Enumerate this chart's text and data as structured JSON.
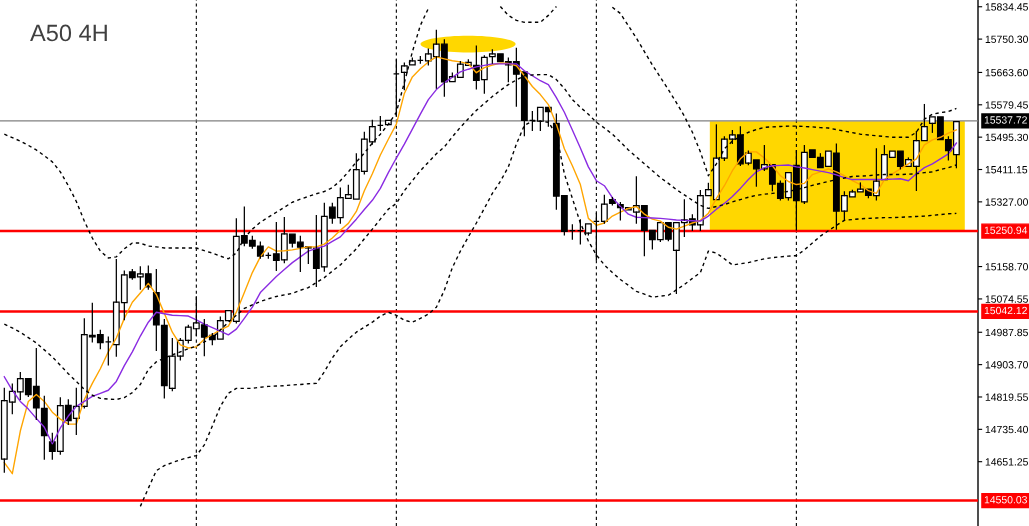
{
  "chart_data": {
    "type": "candlestick",
    "title": "A50 4H",
    "categories": [
      null,
      null,
      null,
      null,
      null,
      null,
      null,
      null,
      null,
      null,
      null,
      null,
      null,
      null,
      null,
      null,
      null,
      null,
      null,
      null,
      null,
      null,
      null,
      null,
      null,
      null,
      null,
      null,
      null,
      null,
      null,
      null,
      null,
      null,
      null,
      null,
      null,
      null,
      null,
      null,
      null,
      null,
      null,
      null,
      null,
      null,
      null,
      null,
      null,
      null,
      null,
      null,
      null,
      null,
      null,
      null,
      null,
      null,
      null,
      null,
      null,
      null,
      null,
      null,
      null,
      null,
      null,
      null,
      null,
      null,
      null,
      null,
      null,
      null,
      null,
      null,
      null,
      null,
      null,
      null,
      null,
      null,
      null,
      null,
      null,
      null,
      null,
      null,
      null,
      null,
      null,
      null,
      null,
      null,
      null,
      null,
      null,
      null,
      null,
      null,
      null,
      null,
      null,
      null,
      null,
      null,
      null,
      null,
      null,
      null,
      null,
      null,
      null,
      null,
      null,
      null,
      null,
      null,
      null,
      null
    ],
    "ohlc": [
      [
        14658,
        14842,
        14624,
        14810
      ],
      [
        14806,
        14853,
        14776,
        14834
      ],
      [
        14833,
        14883,
        14813,
        14867
      ],
      [
        14867,
        14870,
        14821,
        14826
      ],
      [
        14847,
        14945,
        14761,
        14791
      ],
      [
        14790,
        14821,
        14658,
        14719
      ],
      [
        14703,
        14725,
        14658,
        14678
      ],
      [
        14678,
        14817,
        14671,
        14797
      ],
      [
        14798,
        14812,
        14748,
        14758
      ],
      [
        14764,
        14842,
        14722,
        14795
      ],
      [
        14795,
        15023,
        14791,
        14982
      ],
      [
        14980,
        15063,
        14963,
        14976
      ],
      [
        14982,
        14993,
        14945,
        14961
      ],
      [
        14963,
        14975,
        14903,
        14963
      ],
      [
        14956,
        15177,
        14926,
        15066
      ],
      [
        15065,
        15147,
        15021,
        15137
      ],
      [
        15145,
        15151,
        15126,
        15130
      ],
      [
        15132,
        15158,
        15100,
        15140
      ],
      [
        15140,
        15160,
        15100,
        15106
      ],
      [
        15091,
        15151,
        14941,
        15007
      ],
      [
        15006,
        15021,
        14817,
        14849
      ],
      [
        14842,
        14971,
        14836,
        14926
      ],
      [
        14926,
        14971,
        14916,
        14967
      ],
      [
        14967,
        15006,
        14960,
        15001
      ],
      [
        14997,
        15080,
        14980,
        15012
      ],
      [
        15007,
        15021,
        14927,
        14975
      ],
      [
        14980,
        14984,
        14956,
        14969
      ],
      [
        14970,
        15027,
        14967,
        15018
      ],
      [
        15018,
        15047,
        15016,
        15044
      ],
      [
        15016,
        15283,
        15012,
        15237
      ],
      [
        15239,
        15313,
        15213,
        15220
      ],
      [
        15227,
        15237,
        15207,
        15212
      ],
      [
        15212,
        15222,
        15181,
        15186
      ],
      [
        15188,
        15194,
        15181,
        15188
      ],
      [
        15192,
        15273,
        15149,
        15175
      ],
      [
        15176,
        15286,
        15169,
        15244
      ],
      [
        15243,
        15246,
        15210,
        15220
      ],
      [
        15222,
        15237,
        15146,
        15209
      ],
      [
        15210,
        15213,
        15167,
        15207
      ],
      [
        15207,
        15291,
        15107,
        15154
      ],
      [
        15158,
        15323,
        15147,
        15289
      ],
      [
        15313,
        15323,
        15272,
        15285
      ],
      [
        15286,
        15363,
        15272,
        15338
      ],
      [
        15336,
        15370,
        15336,
        15346
      ],
      [
        15334,
        15452,
        15334,
        15411
      ],
      [
        15406,
        15508,
        15400,
        15490
      ],
      [
        15483,
        15539,
        15477,
        15523
      ],
      [
        15526,
        15549,
        15513,
        15526
      ],
      [
        15528,
        15539,
        15528,
        15539
      ],
      [
        15660,
        15696,
        15550,
        15660
      ],
      [
        15664,
        15688,
        15619,
        15681
      ],
      [
        15683,
        15701,
        15681,
        15694
      ],
      [
        15695,
        15705,
        15688,
        15695
      ],
      [
        15694,
        15724,
        15683,
        15712
      ],
      [
        15705,
        15773,
        15623,
        15737
      ],
      [
        15737,
        15748,
        15602,
        15639
      ],
      [
        15640,
        15662,
        15640,
        15653
      ],
      [
        15651,
        15692,
        15649,
        15685
      ],
      [
        15682,
        15696,
        15679,
        15690
      ],
      [
        15682,
        15732,
        15621,
        15643
      ],
      [
        15645,
        15707,
        15610,
        15703
      ],
      [
        15705,
        15722,
        15688,
        15712
      ],
      [
        15712,
        15713,
        15690,
        15692
      ],
      [
        15692,
        15701,
        15640,
        15683
      ],
      [
        15692,
        15726,
        15576,
        15659
      ],
      [
        15665,
        15666,
        15499,
        15539
      ],
      [
        15539,
        15562,
        15513,
        15539
      ],
      [
        15537,
        15573,
        15513,
        15573
      ],
      [
        15573,
        15573,
        15524,
        15562
      ],
      [
        15531,
        15555,
        15308,
        15342
      ],
      [
        15343,
        15344,
        15241,
        15250
      ],
      [
        15252,
        15267,
        15230,
        15252
      ],
      [
        15252,
        15280,
        15218,
        15252
      ],
      [
        15246,
        15270,
        15241,
        15270
      ],
      [
        15276,
        15297,
        15176,
        15276
      ],
      [
        15276,
        15344,
        15272,
        15321
      ],
      [
        15333,
        15338,
        15319,
        15323
      ],
      [
        15320,
        15325,
        15280,
        15312
      ],
      [
        15306,
        15315,
        15304,
        15312
      ],
      [
        15300,
        15392,
        15272,
        15317
      ],
      [
        15317,
        15317,
        15187,
        15253
      ],
      [
        15253,
        15253,
        15205,
        15229
      ],
      [
        15229,
        15273,
        15224,
        15273
      ],
      [
        15273,
        15276,
        15226,
        15230
      ],
      [
        15201,
        15276,
        15089,
        15273
      ],
      [
        15273,
        15332,
        15237,
        15280
      ],
      [
        15283,
        15293,
        15253,
        15267
      ],
      [
        15267,
        15356,
        15253,
        15343
      ],
      [
        15343,
        15375,
        15343,
        15359
      ],
      [
        15333,
        15527,
        15333,
        15441
      ],
      [
        15441,
        15496,
        15435,
        15490
      ],
      [
        15490,
        15512,
        15479,
        15501
      ],
      [
        15501,
        15522,
        15422,
        15426
      ],
      [
        15428,
        15459,
        15424,
        15454
      ],
      [
        15436,
        15436,
        15368,
        15413
      ],
      [
        15413,
        15473,
        15409,
        15424
      ],
      [
        15424,
        15424,
        15356,
        15373
      ],
      [
        15375,
        15381,
        15332,
        15336
      ],
      [
        15338,
        15405,
        15332,
        15403
      ],
      [
        15422,
        15460,
        15254,
        15330
      ],
      [
        15327,
        15473,
        15323,
        15456
      ],
      [
        15462,
        15462,
        15441,
        15443
      ],
      [
        15443,
        15452,
        15413,
        15416
      ],
      [
        15419,
        15459,
        15419,
        15459
      ],
      [
        15454,
        15477,
        15256,
        15303
      ],
      [
        15303,
        15353,
        15280,
        15343
      ],
      [
        15340,
        15357,
        15340,
        15353
      ],
      [
        15353,
        15376,
        15353,
        15360
      ],
      [
        15360,
        15362,
        15338,
        15344
      ],
      [
        15343,
        15465,
        15332,
        15381
      ],
      [
        15385,
        15473,
        15385,
        15450
      ],
      [
        15443,
        15462,
        15443,
        15459
      ],
      [
        15459,
        15459,
        15413,
        15419
      ],
      [
        15419,
        15441,
        15419,
        15437
      ],
      [
        15419,
        15510,
        15357,
        15486
      ],
      [
        15486,
        15580,
        15486,
        15523
      ],
      [
        15531,
        15548,
        15508,
        15548
      ],
      [
        15548,
        15550,
        15486,
        15489
      ],
      [
        15489,
        15496,
        15436,
        15460
      ],
      [
        15450,
        15539,
        15416,
        15536
      ]
    ],
    "series": [
      {
        "type": "line",
        "color": "#ffa500",
        "line_style": "solid",
        "values": [
          14649,
          14620,
          14731,
          14808,
          14826,
          14808,
          14780,
          14762,
          14749,
          14749,
          14813,
          14855,
          14893,
          14937,
          14973,
          15024,
          15066,
          15090,
          15115,
          15086,
          15037,
          14988,
          14955,
          14947,
          14950,
          14970,
          14982,
          14994,
          15004,
          15040,
          15091,
          15143,
          15184,
          15210,
          15199,
          15200,
          15202,
          15206,
          15210,
          15210,
          15217,
          15233,
          15253,
          15271,
          15302,
          15356,
          15400,
          15449,
          15490,
          15529,
          15609,
          15652,
          15673,
          15691,
          15704,
          15699,
          15694,
          15691,
          15686,
          15663,
          15676,
          15683,
          15688,
          15687,
          15681,
          15655,
          15627,
          15606,
          15580,
          15529,
          15465,
          15421,
          15372,
          15284,
          15266,
          15272,
          15290,
          15300,
          15310,
          15315,
          15295,
          15282,
          15277,
          15261,
          15256,
          15264,
          15272,
          15279,
          15297,
          15336,
          15369,
          15408,
          15439,
          15457,
          15457,
          15441,
          15421,
          15395,
          15380,
          15372,
          15375,
          15398,
          15405,
          15413,
          15405,
          15395,
          15382,
          15372,
          15356,
          15349,
          15385,
          15400,
          15413,
          15426,
          15439,
          15475,
          15488,
          15495,
          15506,
          15514
        ]
      },
      {
        "type": "line",
        "color": "#8a2be2",
        "line_style": "solid",
        "values": [
          14872,
          14837,
          14808,
          14788,
          14764,
          14741,
          14698,
          14739,
          14770,
          14795,
          14808,
          14821,
          14829,
          14837,
          14860,
          14901,
          14937,
          14978,
          15014,
          15040,
          15036,
          15032,
          15031,
          15030,
          15020,
          15009,
          15000,
          14991,
          14981,
          14996,
          15024,
          15053,
          15091,
          15112,
          15133,
          15151,
          15169,
          15184,
          15199,
          15206,
          15212,
          15224,
          15236,
          15259,
          15282,
          15307,
          15331,
          15362,
          15403,
          15441,
          15477,
          15516,
          15555,
          15593,
          15619,
          15637,
          15651,
          15665,
          15672,
          15678,
          15682,
          15686,
          15686,
          15686,
          15686,
          15668,
          15655,
          15642,
          15632,
          15598,
          15560,
          15514,
          15467,
          15418,
          15382,
          15369,
          15338,
          15315,
          15295,
          15287,
          15286,
          15285,
          15284,
          15282,
          15280,
          15279,
          15278,
          15277,
          15290,
          15308,
          15323,
          15341,
          15362,
          15385,
          15405,
          15416,
          15421,
          15422,
          15423,
          15418,
          15415,
          15411,
          15407,
          15403,
          15397,
          15390,
          15385,
          15385,
          15385,
          15385,
          15385,
          15386,
          15387,
          15382,
          15400,
          15416,
          15426,
          15439,
          15452,
          15480
        ]
      },
      {
        "type": "line",
        "color": "#000000",
        "line_style": "dashed",
        "values": [
          15503,
          15494,
          15485,
          15474,
          15462,
          15447,
          15431,
          15405,
          15369,
          15328,
          15277,
          15233,
          15199,
          15181,
          15184,
          15205,
          15220,
          15220,
          15212,
          15210,
          15207,
          15207,
          15207,
          15207,
          15207,
          15200,
          15194,
          15186,
          15179,
          15194,
          15233,
          15256,
          15274,
          15287,
          15300,
          15313,
          15326,
          15334,
          15341,
          15348,
          15354,
          15364,
          15382,
          15405,
          15431,
          15454,
          15480,
          15503,
          15529,
          15560,
          15637,
          15717,
          15786,
          15830,
          null,
          null,
          null,
          null,
          null,
          null,
          null,
          null,
          15835,
          15812,
          15799,
          15794,
          15794,
          15794,
          15812,
          15835,
          null,
          null,
          null,
          null,
          null,
          null,
          15833,
          15817,
          15785,
          15753,
          15718,
          15683,
          15651,
          15619,
          15585,
          15550,
          15508,
          15457,
          15395,
          15426,
          15465,
          15485,
          15497,
          15508,
          15515,
          15521,
          15522,
          15523,
          15524,
          15524,
          15523,
          15522,
          15520,
          15519,
          15515,
          15511,
          15507,
          15503,
          15501,
          15499,
          15497,
          15495,
          15495,
          15495,
          15508,
          15542,
          15555,
          15559,
          15562,
          15570
        ]
      },
      {
        "type": "line",
        "color": "#000000",
        "line_style": "dashed",
        "values": [
          15009,
          14999,
          14988,
          14974,
          14960,
          14942,
          14924,
          14902,
          14880,
          14860,
          14839,
          14824,
          14816,
          14814,
          14813,
          14818,
          14831,
          14852,
          14891,
          14911,
          14921,
          14929,
          14937,
          14945,
          14952,
          14963,
          14973,
          14994,
          15014,
          15032,
          15050,
          15059,
          15068,
          15075,
          15081,
          15085,
          15089,
          15097,
          15104,
          15117,
          15130,
          15147,
          15163,
          15184,
          15205,
          15231,
          15256,
          15282,
          15308,
          15323,
          15356,
          15382,
          15408,
          15430,
          15452,
          15470,
          15496,
          15521,
          15543,
          15565,
          15583,
          15601,
          15617,
          15632,
          15644,
          15655,
          15657,
          15658,
          15658,
          15645,
          15622,
          15593,
          15573,
          15555,
          15534,
          15519,
          15503,
          15483,
          15462,
          15444,
          15426,
          15408,
          15390,
          15375,
          15359,
          15345,
          15331,
          15318,
          15310,
          15315,
          15320,
          15327,
          15333,
          15339,
          15344,
          15347,
          15349,
          15352,
          15354,
          15359,
          15364,
          15370,
          15375,
          15380,
          15385,
          15389,
          15393,
          15394,
          15395,
          15397,
          15398,
          15398,
          15398,
          15399,
          15400,
          15403,
          15405,
          15411,
          15416,
          15423
        ]
      },
      {
        "type": "line",
        "color": "#000000",
        "line_style": "dashed",
        "values": [
          null,
          null,
          null,
          null,
          null,
          null,
          null,
          null,
          null,
          null,
          null,
          null,
          null,
          null,
          null,
          null,
          null,
          14535,
          14582,
          14628,
          14641,
          14649,
          14656,
          14662,
          14667,
          14695,
          14744,
          14795,
          14829,
          14842,
          14842,
          14842,
          14845,
          14847,
          14848,
          14849,
          14851,
          14852,
          14854,
          14855,
          14885,
          14921,
          14950,
          14970,
          14988,
          15001,
          15014,
          15030,
          15040,
          15032,
          15019,
          15014,
          15024,
          15035,
          15053,
          15097,
          15156,
          15199,
          15236,
          15272,
          15310,
          15349,
          15380,
          15418,
          15477,
          15526,
          15537,
          15537,
          15534,
          15503,
          15400,
          15336,
          15272,
          15225,
          15189,
          15163,
          15143,
          15125,
          15110,
          15094,
          15087,
          15079,
          15082,
          15084,
          15098,
          15112,
          15128,
          15143,
          15199,
          15194,
          15179,
          15163,
          15166,
          15169,
          15174,
          15179,
          15182,
          15184,
          15186,
          15187,
          15202,
          15220,
          15238,
          15252,
          15266,
          15279,
          15281,
          15283,
          15284,
          15285,
          15286,
          15286,
          15287,
          15288,
          15289,
          15290,
          15292,
          15294,
          15296,
          15297
        ]
      }
    ],
    "ylim": [
      14484,
      15852
    ],
    "yticks": [
      15834.45,
      {
        "value": 15750.3,
        "label": "15750.30"
      },
      {
        "value": 15663.6,
        "label": "15663.60"
      },
      15579.45,
      {
        "value": 15495.3,
        "label": "15495.30"
      },
      15411.15,
      {
        "value": 15327,
        "label": "15327.00"
      },
      {
        "value": 15158.7,
        "label": "15158.70"
      },
      15074.55,
      14987.85,
      {
        "value": 14903.7,
        "label": "14903.70"
      },
      14819.55,
      {
        "value": 14735.4,
        "label": "14735.40"
      },
      14651.25
    ],
    "ref_lines": [
      {
        "axis": "y",
        "value": 15537.72,
        "label": "15537.72",
        "color": "#808080"
      },
      {
        "axis": "y",
        "value": 15250.94,
        "label": "15250.94",
        "color": "#ff0000"
      },
      {
        "axis": "y",
        "value": 15042.12,
        "label": "15042.12",
        "color": "#ff0000"
      },
      {
        "axis": "y",
        "value": 14550.03,
        "label": "14550.03",
        "color": "#ff0000"
      }
    ],
    "grid": "x",
    "tick_labels": "y"
  }
}
